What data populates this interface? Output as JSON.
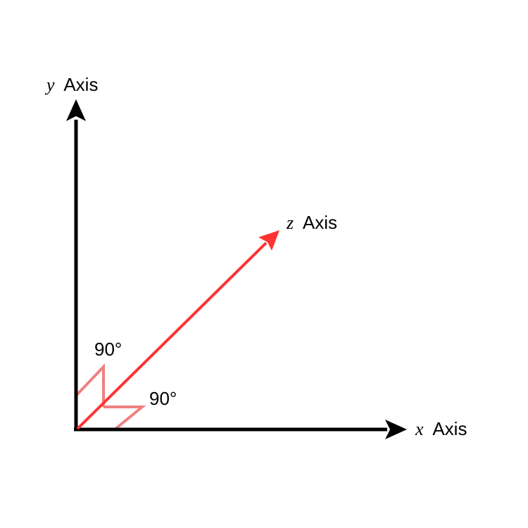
{
  "axes": {
    "x": {
      "var": "x",
      "word": "Axis",
      "color": "#000000"
    },
    "y": {
      "var": "y",
      "word": "Axis",
      "color": "#000000"
    },
    "z": {
      "var": "z",
      "word": "Axis",
      "color": "#ff3333"
    }
  },
  "angles": {
    "yz": {
      "label": "90°",
      "color": "#f08080"
    },
    "xz": {
      "label": "90°",
      "color": "#f08080"
    }
  }
}
